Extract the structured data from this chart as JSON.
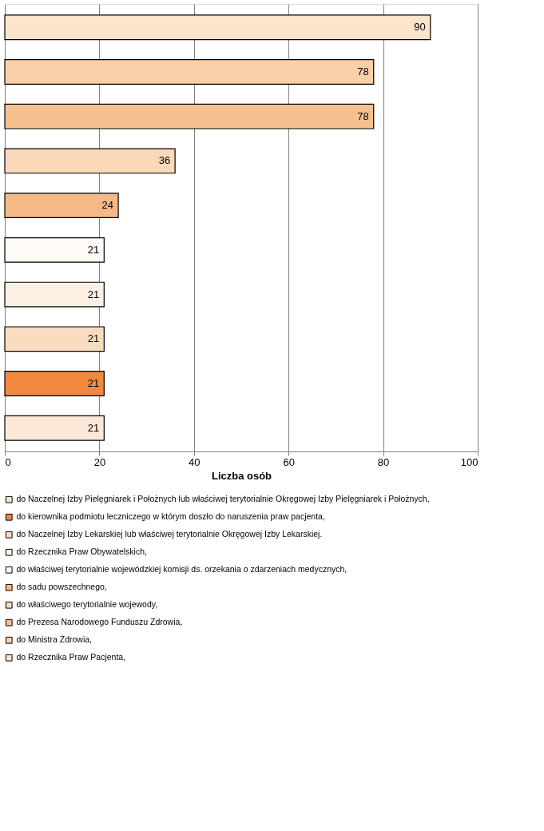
{
  "chart_data": {
    "type": "bar",
    "orientation": "horizontal",
    "xlabel": "Liczba osób",
    "categories": [
      null,
      null,
      null,
      null,
      null,
      null,
      null,
      null,
      null,
      null
    ],
    "series": [
      {
        "name": "do Naczelnej Izby Pielęgniarek i Położnych lub właściwej terytorialnie Okręgowej Izby Pielęgniarek i Położnych,",
        "color": "#fbe8d6",
        "values": [
          null,
          null,
          null,
          null,
          null,
          null,
          null,
          null,
          null,
          21
        ]
      },
      {
        "name": "do kierownika podmiotu leczniczego w którym doszło do naruszenia praw pacjenta,",
        "color": "#f0883e",
        "values": [
          null,
          null,
          null,
          null,
          null,
          null,
          null,
          null,
          21,
          null
        ]
      },
      {
        "name": "do Naczelnej Izby Lekarskiej lub właściwej terytorialnie Okręgowej Izby Lekarskiej.",
        "color": "#f9dcc0",
        "values": [
          null,
          null,
          null,
          null,
          null,
          null,
          null,
          21,
          null,
          null
        ]
      },
      {
        "name": "do Rzecznika Praw Obywatelskich,",
        "color": "#fdf0e3",
        "values": [
          null,
          null,
          null,
          null,
          null,
          null,
          21,
          null,
          null,
          null
        ]
      },
      {
        "name": "do właściwej terytorialnie wojewódzkiej komisji ds. orzekania o zdarzeniach medycznych,",
        "color": "#fffaf5",
        "values": [
          null,
          null,
          null,
          null,
          null,
          21,
          null,
          null,
          null,
          null
        ]
      },
      {
        "name": "do sadu powszechnego,",
        "color": "#f5b988",
        "values": [
          null,
          null,
          null,
          null,
          24,
          null,
          null,
          null,
          null,
          null
        ]
      },
      {
        "name": "do właściwego terytorialnie wojewody,",
        "color": "#fad9b8",
        "values": [
          null,
          null,
          null,
          36,
          null,
          null,
          null,
          null,
          null,
          null
        ]
      },
      {
        "name": "do Prezesa Narodowego Funduszu Zdrowia,",
        "color": "#f6c08e",
        "values": [
          null,
          null,
          78,
          null,
          null,
          null,
          null,
          null,
          null,
          null
        ]
      },
      {
        "name": "do Ministra Zdrowia,",
        "color": "#f8cfa6",
        "values": [
          null,
          78,
          null,
          null,
          null,
          null,
          null,
          null,
          null,
          null
        ]
      },
      {
        "name": "do Rzecznika Praw Pacjenta,",
        "color": "#fbe3cc",
        "values": [
          90,
          null,
          null,
          null,
          null,
          null,
          null,
          null,
          null,
          null
        ]
      }
    ],
    "xlim": [
      0,
      100
    ],
    "xticks": [
      0,
      20,
      40,
      60,
      80,
      100
    ],
    "grid": "x",
    "legend": "bottom",
    "data_labels": true,
    "tick_labels": "x"
  }
}
